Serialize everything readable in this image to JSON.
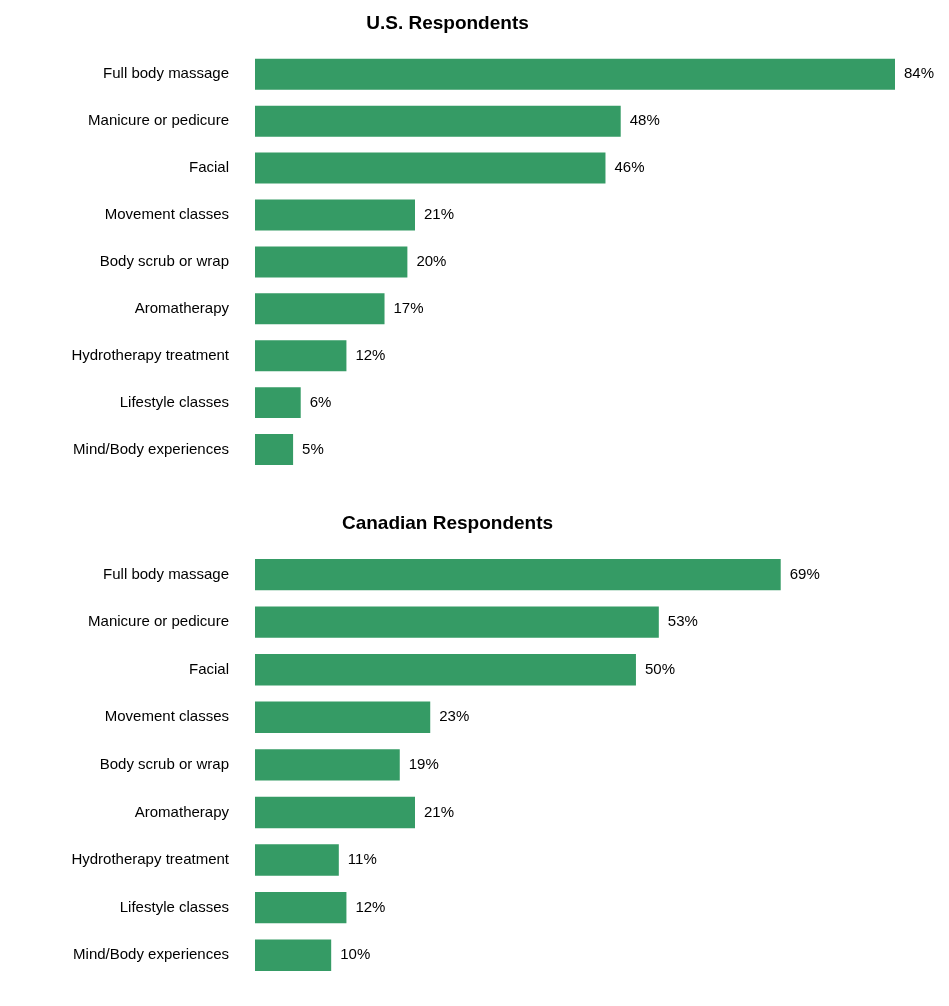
{
  "chart_data": [
    {
      "type": "bar",
      "title": "U.S. Respondents",
      "orientation": "horizontal",
      "categories": [
        "Full body massage",
        "Manicure or pedicure",
        "Facial",
        "Movement classes",
        "Body scrub or wrap",
        "Aromatherapy",
        "Hydrotherapy treatment",
        "Lifestyle classes",
        "Mind/Body experiences"
      ],
      "values": [
        84,
        48,
        46,
        21,
        20,
        17,
        12,
        6,
        5
      ],
      "value_labels": [
        "84%",
        "48%",
        "46%",
        "21%",
        "20%",
        "17%",
        "12%",
        "6%",
        "5%"
      ],
      "color": "#359b65"
    },
    {
      "type": "bar",
      "title": "Canadian Respondents",
      "orientation": "horizontal",
      "categories": [
        "Full body massage",
        "Manicure or pedicure",
        "Facial",
        "Movement classes",
        "Body scrub or wrap",
        "Aromatherapy",
        "Hydrotherapy treatment",
        "Lifestyle classes",
        "Mind/Body experiences"
      ],
      "values": [
        69,
        53,
        50,
        23,
        19,
        21,
        11,
        12,
        10
      ],
      "value_labels": [
        "69%",
        "53%",
        "50%",
        "23%",
        "19%",
        "21%",
        "11%",
        "12%",
        "10%"
      ],
      "color": "#359b65"
    }
  ]
}
